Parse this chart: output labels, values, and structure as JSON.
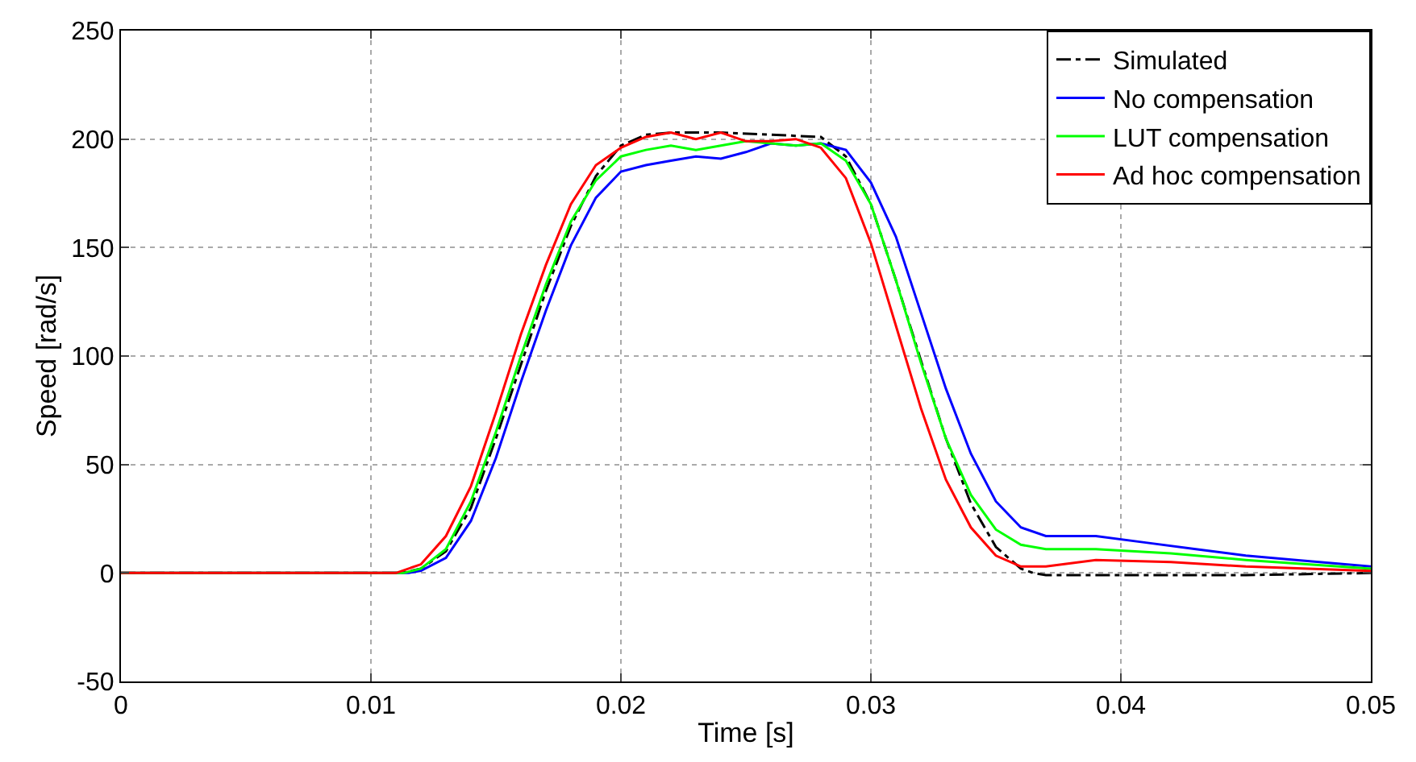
{
  "chart_data": {
    "type": "line",
    "xlabel": "Time [s]",
    "ylabel": "Speed [rad/s]",
    "xlim": [
      0,
      0.05
    ],
    "ylim": [
      -50,
      250
    ],
    "xticks": [
      0,
      0.01,
      0.02,
      0.03,
      0.04,
      0.05
    ],
    "yticks": [
      -50,
      0,
      50,
      100,
      150,
      200,
      250
    ],
    "grid": true,
    "legend": "top right",
    "marker": "none",
    "series": [
      {
        "name": "Simulated",
        "color": "#000000",
        "line_style": "dashdot",
        "x": [
          0,
          0.0112,
          0.012,
          0.013,
          0.014,
          0.015,
          0.016,
          0.017,
          0.018,
          0.019,
          0.02,
          0.021,
          0.022,
          0.024,
          0.026,
          0.028,
          0.029,
          0.03,
          0.031,
          0.032,
          0.033,
          0.034,
          0.035,
          0.036,
          0.0365,
          0.037,
          0.04,
          0.045,
          0.05
        ],
        "values": [
          0,
          0,
          2,
          10,
          30,
          62,
          96,
          130,
          160,
          183,
          197,
          202,
          203,
          203,
          202,
          201,
          192,
          170,
          135,
          98,
          62,
          32,
          12,
          2,
          0,
          -1,
          -1,
          -1,
          0
        ]
      },
      {
        "name": "No compensation",
        "color": "#0000ff",
        "x": [
          0,
          0.0115,
          0.012,
          0.013,
          0.014,
          0.015,
          0.016,
          0.017,
          0.018,
          0.019,
          0.02,
          0.021,
          0.022,
          0.023,
          0.024,
          0.025,
          0.026,
          0.027,
          0.028,
          0.029,
          0.03,
          0.031,
          0.032,
          0.033,
          0.034,
          0.035,
          0.036,
          0.037,
          0.039,
          0.041,
          0.043,
          0.045,
          0.047,
          0.05
        ],
        "values": [
          0,
          0,
          1,
          7,
          24,
          53,
          88,
          121,
          151,
          173,
          185,
          188,
          190,
          192,
          191,
          194,
          198,
          197,
          198,
          195,
          180,
          155,
          120,
          85,
          55,
          33,
          21,
          17,
          17,
          14,
          11,
          8,
          6,
          3
        ]
      },
      {
        "name": "LUT compensation",
        "color": "#00ff00",
        "x": [
          0,
          0.0113,
          0.012,
          0.013,
          0.014,
          0.015,
          0.016,
          0.017,
          0.018,
          0.019,
          0.02,
          0.021,
          0.022,
          0.023,
          0.024,
          0.025,
          0.026,
          0.027,
          0.028,
          0.029,
          0.03,
          0.031,
          0.032,
          0.033,
          0.034,
          0.035,
          0.036,
          0.037,
          0.039,
          0.042,
          0.045,
          0.05
        ],
        "values": [
          0,
          0,
          2,
          11,
          33,
          65,
          100,
          133,
          162,
          181,
          192,
          195,
          197,
          195,
          197,
          199,
          198,
          197,
          198,
          190,
          170,
          135,
          97,
          62,
          36,
          20,
          13,
          11,
          11,
          9,
          6,
          2
        ]
      },
      {
        "name": "Ad hoc compensation",
        "color": "#ff0000",
        "x": [
          0,
          0.011,
          0.012,
          0.013,
          0.014,
          0.015,
          0.016,
          0.017,
          0.018,
          0.019,
          0.02,
          0.021,
          0.022,
          0.023,
          0.024,
          0.025,
          0.026,
          0.027,
          0.028,
          0.029,
          0.03,
          0.031,
          0.032,
          0.033,
          0.034,
          0.035,
          0.036,
          0.0365,
          0.037,
          0.039,
          0.042,
          0.045,
          0.05
        ],
        "values": [
          0,
          0,
          4,
          17,
          40,
          74,
          110,
          142,
          170,
          188,
          196,
          201,
          203,
          200,
          203,
          199,
          199,
          200,
          196,
          182,
          152,
          114,
          76,
          43,
          21,
          8,
          3,
          3,
          3,
          6,
          5,
          3,
          1
        ]
      }
    ]
  }
}
